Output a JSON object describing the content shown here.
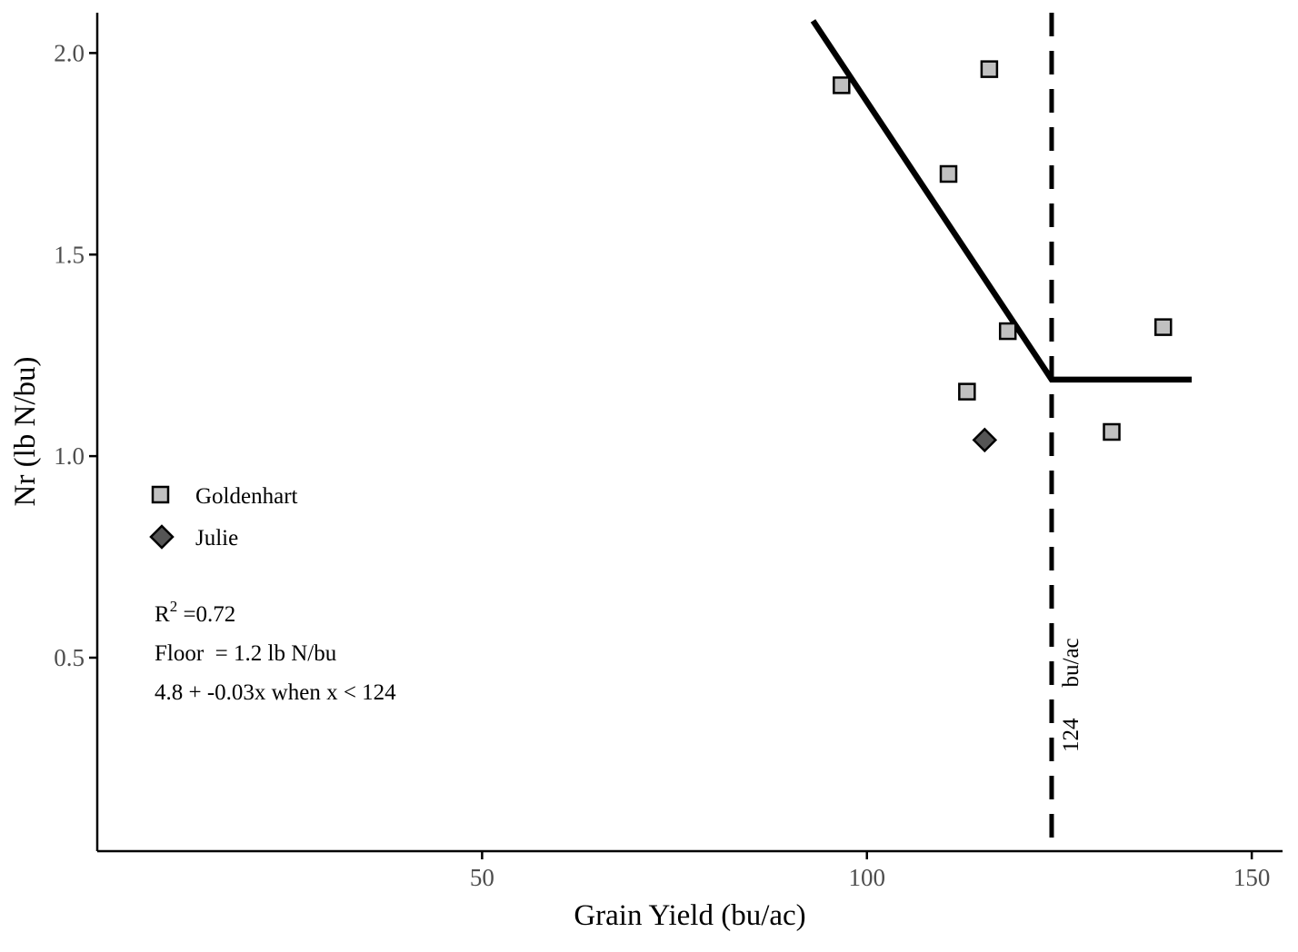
{
  "chart_data": {
    "type": "scatter",
    "title": "",
    "xlabel": "Grain Yield (bu/ac)",
    "ylabel": "Nr (lb N/bu)",
    "xlim": [
      0,
      154
    ],
    "ylim": [
      0.02,
      2.1
    ],
    "xticks": [
      50,
      100,
      150
    ],
    "xtick_labels": [
      "50",
      "100",
      "150"
    ],
    "yticks": [
      0.5,
      1.0,
      1.5,
      2.0
    ],
    "ytick_labels": [
      "0.5",
      "1.0",
      "1.5",
      "2.0"
    ],
    "grid": false,
    "series": [
      {
        "name": "Goldenhart",
        "marker": "square",
        "fill": "#c0c0c0",
        "points": [
          {
            "x": 96.7,
            "y": 1.92
          },
          {
            "x": 115.9,
            "y": 1.96
          },
          {
            "x": 110.6,
            "y": 1.7
          },
          {
            "x": 118.3,
            "y": 1.31
          },
          {
            "x": 113.0,
            "y": 1.16
          },
          {
            "x": 131.8,
            "y": 1.06
          },
          {
            "x": 138.5,
            "y": 1.32
          }
        ]
      },
      {
        "name": "Julie",
        "marker": "diamond",
        "fill": "#555555",
        "points": [
          {
            "x": 115.3,
            "y": 1.04
          }
        ]
      }
    ],
    "fit_line": {
      "type": "linear-plateau",
      "points": [
        {
          "x": 93.0,
          "y": 2.08
        },
        {
          "x": 124.0,
          "y": 1.19
        },
        {
          "x": 142.2,
          "y": 1.19
        }
      ]
    },
    "vline": {
      "x": 124,
      "label_number": "124",
      "label_unit": "bu/ac"
    },
    "legend": {
      "position": "left",
      "entries": [
        "Goldenhart",
        "Julie"
      ]
    },
    "annotations": {
      "r2_prefix": "R",
      "r2_superscript": "2",
      "r2_value": " =0.72",
      "floor": "Floor  = 1.2 lb N/bu",
      "equation": "4.8 + -0.03x when x < 124"
    },
    "colors": {
      "axis": "#000000",
      "tick_text": "#4d4d4d",
      "line": "#000000"
    }
  }
}
